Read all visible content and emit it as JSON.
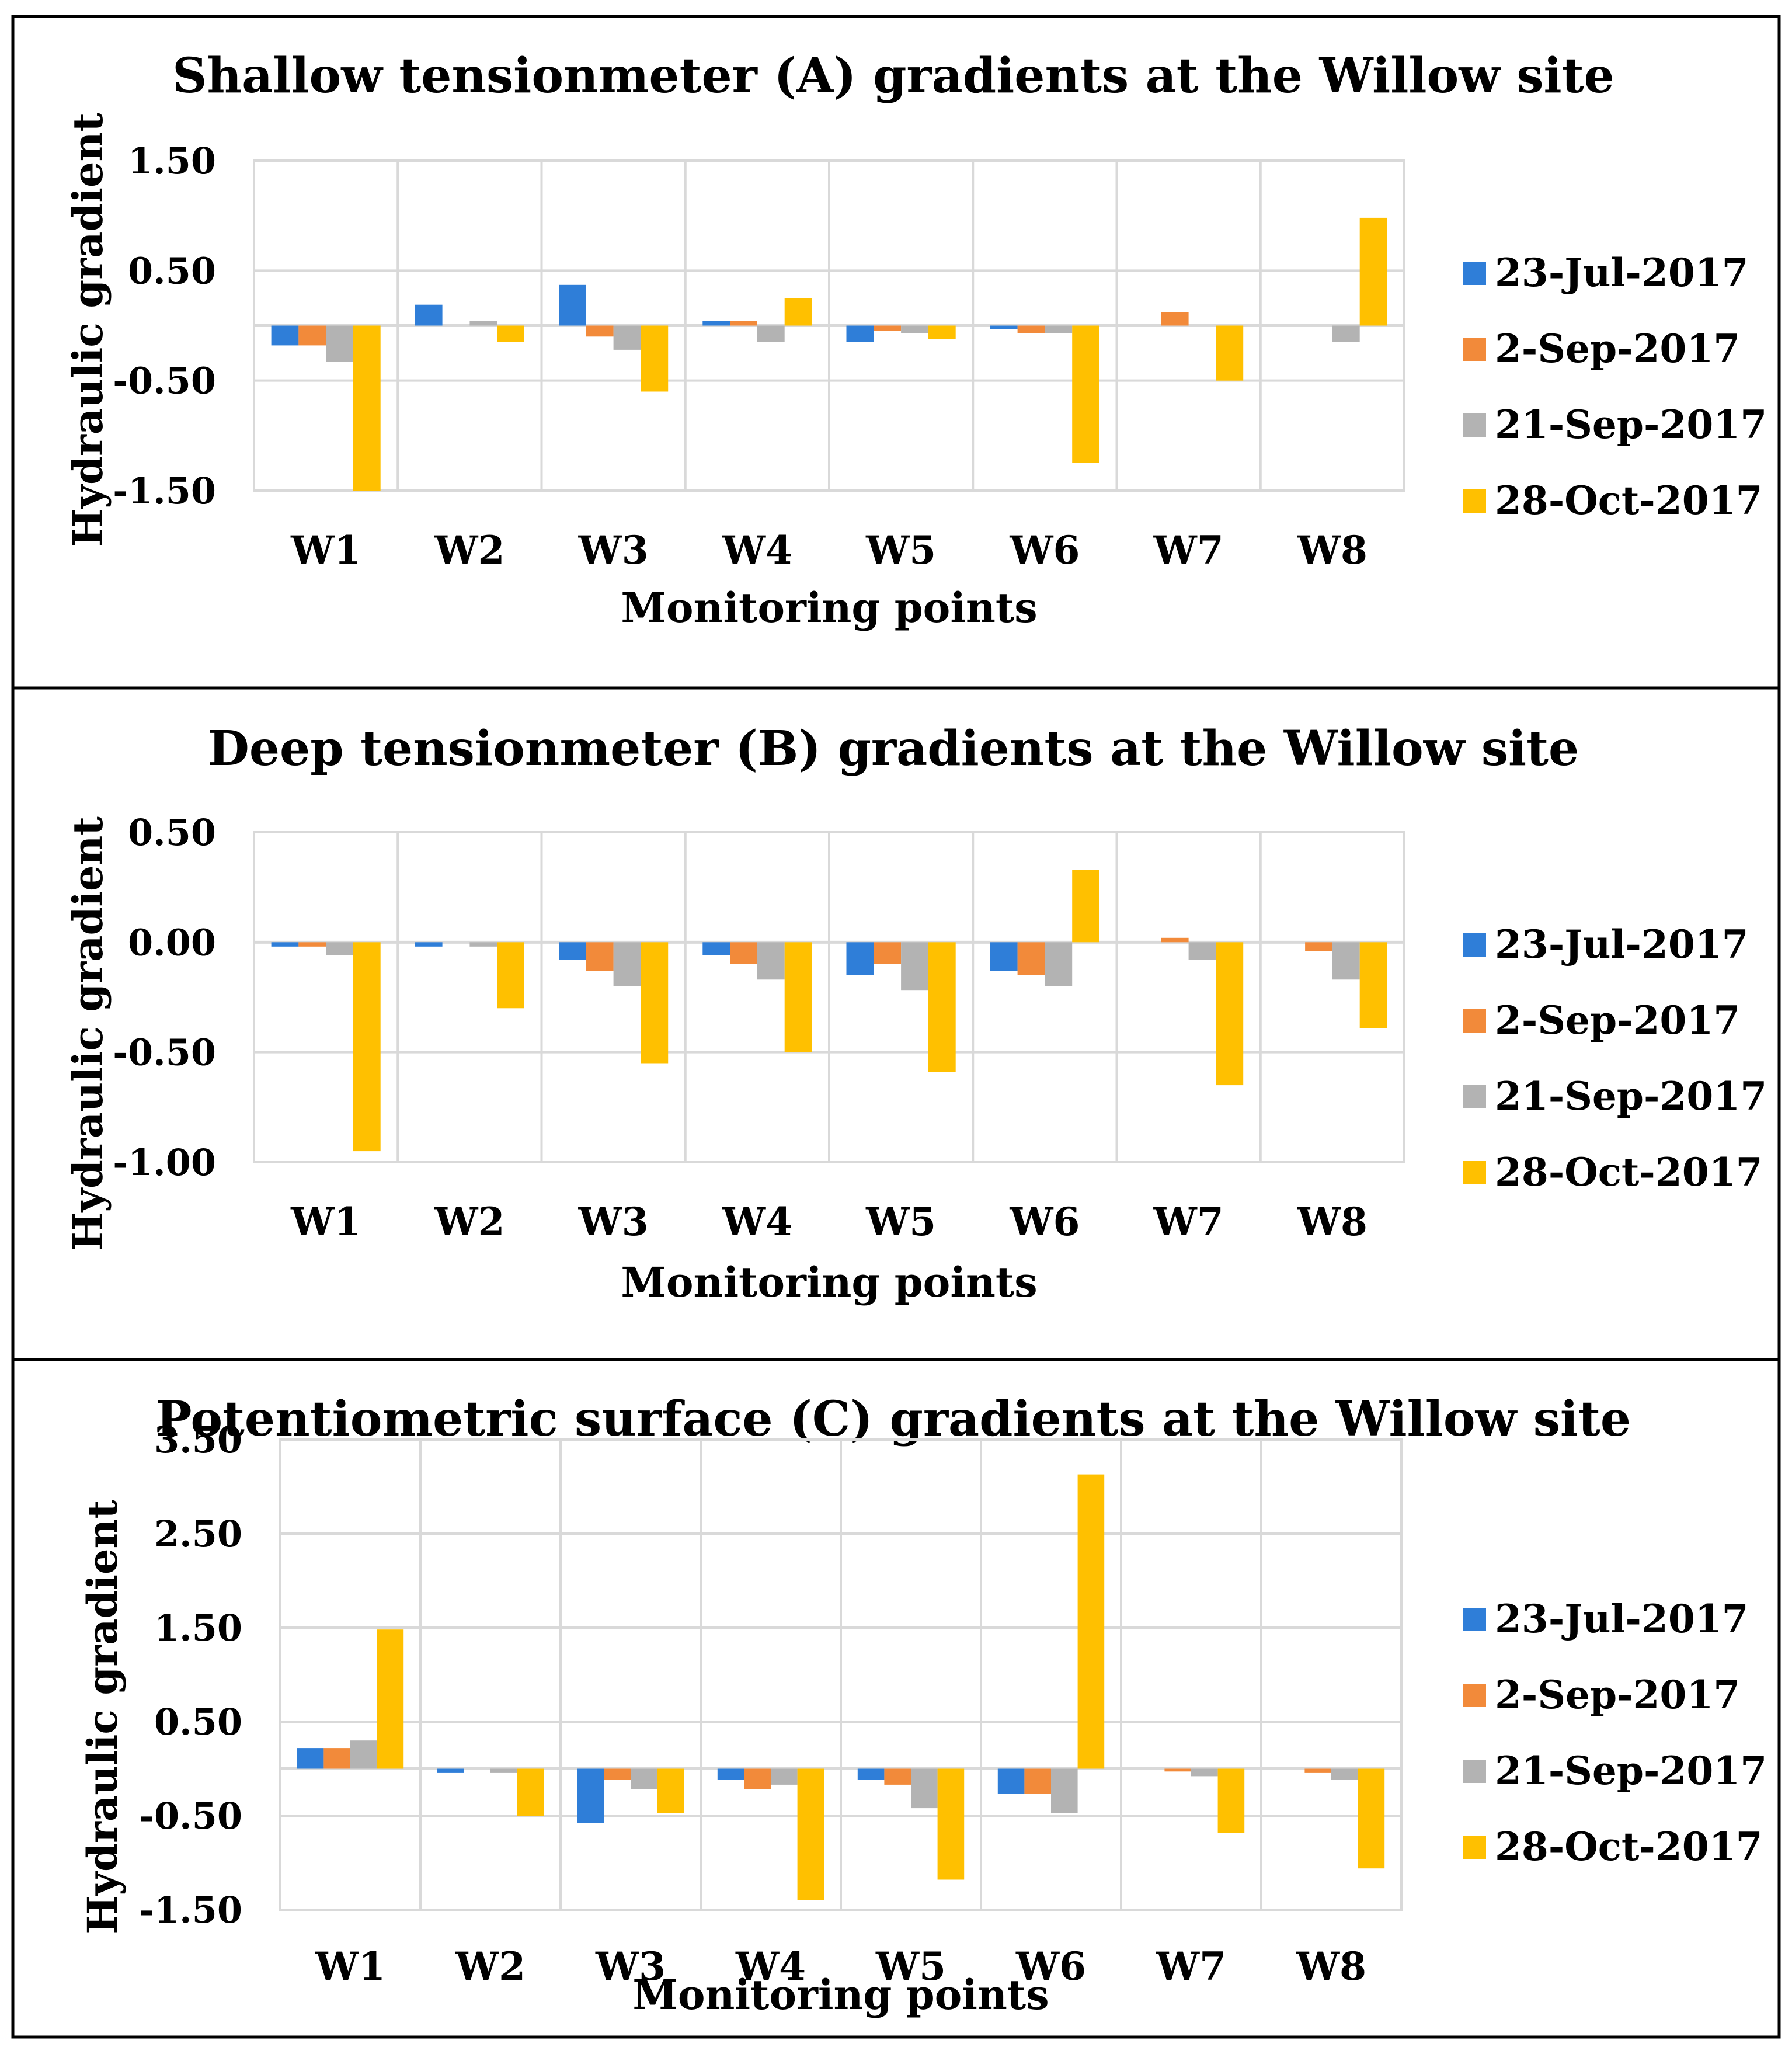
{
  "chart_data": [
    {
      "type": "bar",
      "title": "Shallow tensionmeter (A) gradients at the Willow site",
      "xlabel": "Monitoring points",
      "ylabel": "Hydraulic gradient",
      "ylim": [
        -1.5,
        1.5
      ],
      "yticks": [
        1.5,
        0.5,
        -0.5,
        -1.5
      ],
      "ytick_labels": [
        "1.50",
        "0.50",
        "-0.50",
        "-1.50"
      ],
      "categories": [
        "W1",
        "W2",
        "W3",
        "W4",
        "W5",
        "W6",
        "W7",
        "W8"
      ],
      "series": [
        {
          "name": "23-Jul-2017",
          "values": [
            -0.18,
            0.19,
            0.37,
            0.04,
            -0.15,
            -0.03,
            0.0,
            0.0
          ]
        },
        {
          "name": "2-Sep-2017",
          "values": [
            -0.18,
            0.0,
            -0.1,
            0.04,
            -0.05,
            -0.07,
            0.12,
            0.0
          ]
        },
        {
          "name": "21-Sep-2017",
          "values": [
            -0.33,
            0.04,
            -0.22,
            -0.15,
            -0.07,
            -0.07,
            0.0,
            -0.15
          ]
        },
        {
          "name": "28-Oct-2017",
          "values": [
            -1.5,
            -0.15,
            -0.6,
            0.25,
            -0.12,
            -1.25,
            -0.5,
            0.98
          ]
        }
      ]
    },
    {
      "type": "bar",
      "title": "Deep tensionmeter (B) gradients at the Willow site",
      "xlabel": "Monitoring points",
      "ylabel": "Hydraulic gradient",
      "ylim": [
        -1.0,
        0.5
      ],
      "yticks": [
        0.5,
        0.0,
        -0.5,
        -1.0
      ],
      "ytick_labels": [
        "0.50",
        "0.00",
        "-0.50",
        "-1.00"
      ],
      "categories": [
        "W1",
        "W2",
        "W3",
        "W4",
        "W5",
        "W6",
        "W7",
        "W8"
      ],
      "series": [
        {
          "name": "23-Jul-2017",
          "values": [
            -0.02,
            -0.02,
            -0.08,
            -0.06,
            -0.15,
            -0.13,
            0.0,
            0.0
          ]
        },
        {
          "name": "2-Sep-2017",
          "values": [
            -0.02,
            0.0,
            -0.13,
            -0.1,
            -0.1,
            -0.15,
            0.02,
            -0.04
          ]
        },
        {
          "name": "21-Sep-2017",
          "values": [
            -0.06,
            -0.02,
            -0.2,
            -0.17,
            -0.22,
            -0.2,
            -0.08,
            -0.17
          ]
        },
        {
          "name": "28-Oct-2017",
          "values": [
            -0.95,
            -0.3,
            -0.55,
            -0.5,
            -0.59,
            0.33,
            -0.65,
            -0.39
          ]
        }
      ]
    },
    {
      "type": "bar",
      "title": "Potentiometric surface (C) gradients at the Willow site",
      "xlabel": "Monitoring points",
      "ylabel": "Hydraulic gradient",
      "ylim": [
        -1.5,
        3.5
      ],
      "yticks": [
        3.5,
        2.5,
        1.5,
        0.5,
        -0.5,
        -1.5
      ],
      "ytick_labels": [
        "3.50",
        "2.50",
        "1.50",
        "0.50",
        "-0.50",
        "-1.50"
      ],
      "categories": [
        "W1",
        "W2",
        "W3",
        "W4",
        "W5",
        "W6",
        "W7",
        "W8"
      ],
      "series": [
        {
          "name": "23-Jul-2017",
          "values": [
            0.22,
            -0.04,
            -0.58,
            -0.12,
            -0.12,
            -0.27,
            0.0,
            0.0
          ]
        },
        {
          "name": "2-Sep-2017",
          "values": [
            0.22,
            0.0,
            -0.12,
            -0.22,
            -0.17,
            -0.27,
            -0.03,
            -0.04
          ]
        },
        {
          "name": "21-Sep-2017",
          "values": [
            0.3,
            -0.04,
            -0.22,
            -0.17,
            -0.42,
            -0.47,
            -0.08,
            -0.12
          ]
        },
        {
          "name": "28-Oct-2017",
          "values": [
            1.48,
            -0.5,
            -0.47,
            -1.4,
            -1.18,
            3.13,
            -0.68,
            -1.06
          ]
        }
      ]
    }
  ],
  "series_colors": [
    "#2f7ed8",
    "#f28a3a",
    "#b3b3b3",
    "#ffc000"
  ]
}
